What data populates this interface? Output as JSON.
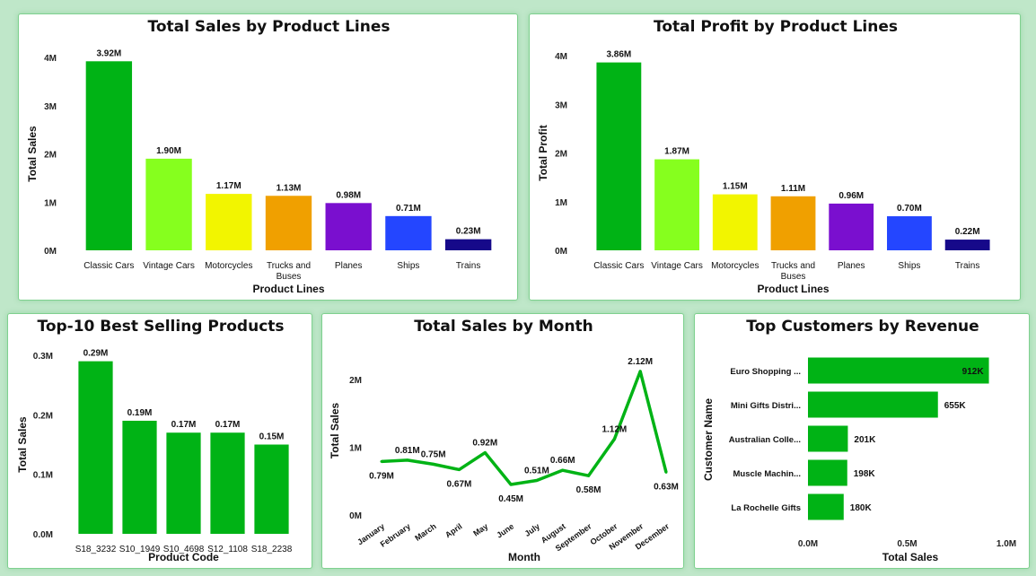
{
  "chart_data": [
    {
      "id": "sales-by-line",
      "type": "bar",
      "title": "Total Sales by Product Lines",
      "xlabel": "Product Lines",
      "ylabel": "Total Sales",
      "categories": [
        "Classic Cars",
        "Vintage Cars",
        "Motorcycles",
        "Trucks and Buses",
        "Planes",
        "Ships",
        "Trains"
      ],
      "values": [
        3.92,
        1.9,
        1.17,
        1.13,
        0.98,
        0.71,
        0.23
      ],
      "data_labels": [
        "3.92M",
        "1.90M",
        "1.17M",
        "1.13M",
        "0.98M",
        "0.71M",
        "0.23M"
      ],
      "colors": [
        "#00b315",
        "#86ff1e",
        "#f2f500",
        "#f0a000",
        "#7a0fcf",
        "#2446ff",
        "#16098a"
      ],
      "yticks": [
        "0M",
        "1M",
        "2M",
        "3M",
        "4M"
      ],
      "ylim": [
        0,
        4
      ]
    },
    {
      "id": "profit-by-line",
      "type": "bar",
      "title": "Total Profit by Product Lines",
      "xlabel": "Product Lines",
      "ylabel": "Total Profit",
      "categories": [
        "Classic Cars",
        "Vintage Cars",
        "Motorcycles",
        "Trucks and Buses",
        "Planes",
        "Ships",
        "Trains"
      ],
      "values": [
        3.86,
        1.87,
        1.15,
        1.11,
        0.96,
        0.7,
        0.22
      ],
      "data_labels": [
        "3.86M",
        "1.87M",
        "1.15M",
        "1.11M",
        "0.96M",
        "0.70M",
        "0.22M"
      ],
      "colors": [
        "#00b315",
        "#86ff1e",
        "#f2f500",
        "#f0a000",
        "#7a0fcf",
        "#2446ff",
        "#16098a"
      ],
      "yticks": [
        "0M",
        "1M",
        "2M",
        "3M",
        "4M"
      ],
      "ylim": [
        0,
        4
      ]
    },
    {
      "id": "top10-products",
      "type": "bar",
      "title": "Top-10 Best Selling Products",
      "xlabel": "Product Code",
      "ylabel": "Total Sales",
      "categories": [
        "S18_3232",
        "S10_1949",
        "S10_4698",
        "S12_1108",
        "S18_2238"
      ],
      "values": [
        0.29,
        0.19,
        0.17,
        0.17,
        0.15
      ],
      "data_labels": [
        "0.29M",
        "0.19M",
        "0.17M",
        "0.17M",
        "0.15M"
      ],
      "color": "#00b315",
      "yticks": [
        "0.0M",
        "0.1M",
        "0.2M",
        "0.3M"
      ],
      "ylim": [
        0,
        0.3
      ]
    },
    {
      "id": "sales-by-month",
      "type": "line",
      "title": "Total Sales by Month",
      "xlabel": "Month",
      "ylabel": "Total Sales",
      "categories": [
        "January",
        "February",
        "March",
        "April",
        "May",
        "June",
        "July",
        "August",
        "September",
        "October",
        "November",
        "December"
      ],
      "values": [
        0.79,
        0.81,
        0.75,
        0.67,
        0.92,
        0.45,
        0.51,
        0.66,
        0.58,
        1.12,
        2.12,
        0.63
      ],
      "data_labels": [
        "0.79M",
        "0.81M",
        "0.75M",
        "0.67M",
        "0.92M",
        "0.45M",
        "0.51M",
        "0.66M",
        "0.58M",
        "1.12M",
        "2.12M",
        "0.63M"
      ],
      "color": "#00b315",
      "yticks": [
        "0M",
        "1M",
        "2M"
      ],
      "ylim": [
        0,
        2
      ]
    },
    {
      "id": "top-customers",
      "type": "bar",
      "orientation": "horizontal",
      "title": "Top Customers by Revenue",
      "xlabel": "Total Sales",
      "ylabel": "Customer Name",
      "categories": [
        "Euro Shopping ...",
        "Mini Gifts Distri...",
        "Australian Colle...",
        "Muscle Machin...",
        "La Rochelle Gifts"
      ],
      "values": [
        912,
        655,
        201,
        198,
        180
      ],
      "data_labels": [
        "912K",
        "655K",
        "201K",
        "198K",
        "180K"
      ],
      "color": "#00b315",
      "xticks": [
        "0.0M",
        "0.5M",
        "1.0M"
      ],
      "xlim": [
        0,
        1000
      ]
    }
  ]
}
